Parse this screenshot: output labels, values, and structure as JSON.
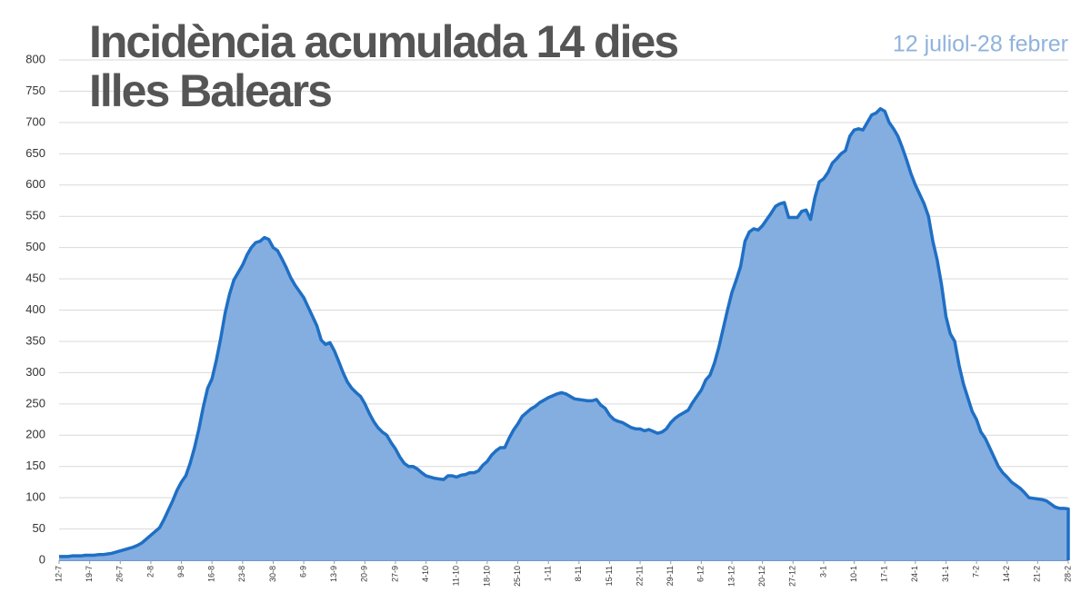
{
  "chart_data": {
    "type": "area",
    "title_lines": [
      "Incidència acumulada 14 dies",
      "Illes Balears"
    ],
    "subtitle": "12 juliol-28 febrer",
    "color": "#84aee0",
    "line_color": "#1f6fc4",
    "grid": true,
    "ylim": [
      0,
      800
    ],
    "yticks": [
      0,
      50,
      100,
      150,
      200,
      250,
      300,
      350,
      400,
      450,
      500,
      550,
      600,
      650,
      700,
      750,
      800
    ],
    "categories": [
      "12-7",
      null,
      null,
      null,
      null,
      null,
      null,
      "19-7",
      null,
      null,
      null,
      null,
      null,
      null,
      "26-7",
      null,
      null,
      null,
      null,
      null,
      null,
      "2-8",
      null,
      null,
      null,
      null,
      null,
      null,
      "9-8",
      null,
      null,
      null,
      null,
      null,
      null,
      "16-8",
      null,
      null,
      null,
      null,
      null,
      null,
      "23-8",
      null,
      null,
      null,
      null,
      null,
      null,
      "30-8",
      null,
      null,
      null,
      null,
      null,
      null,
      "6-9",
      null,
      null,
      null,
      null,
      null,
      null,
      "13-9",
      null,
      null,
      null,
      null,
      null,
      null,
      "20-9",
      null,
      null,
      null,
      null,
      null,
      null,
      "27-9",
      null,
      null,
      null,
      null,
      null,
      null,
      "4-10",
      null,
      null,
      null,
      null,
      null,
      null,
      "11-10",
      null,
      null,
      null,
      null,
      null,
      null,
      "18-10",
      null,
      null,
      null,
      null,
      null,
      null,
      "25-10",
      null,
      null,
      null,
      null,
      null,
      null,
      "1-11",
      null,
      null,
      null,
      null,
      null,
      null,
      "8-11",
      null,
      null,
      null,
      null,
      null,
      null,
      "15-11",
      null,
      null,
      null,
      null,
      null,
      null,
      "22-11",
      null,
      null,
      null,
      null,
      null,
      null,
      "29-11",
      null,
      null,
      null,
      null,
      null,
      null,
      "6-12",
      null,
      null,
      null,
      null,
      null,
      null,
      "13-12",
      null,
      null,
      null,
      null,
      null,
      null,
      "20-12",
      null,
      null,
      null,
      null,
      null,
      null,
      "27-12",
      null,
      null,
      null,
      null,
      null,
      null,
      "3-1",
      null,
      null,
      null,
      null,
      null,
      null,
      "10-1",
      null,
      null,
      null,
      null,
      null,
      null,
      "17-1",
      null,
      null,
      null,
      null,
      null,
      null,
      "24-1",
      null,
      null,
      null,
      null,
      null,
      null,
      "31-1",
      null,
      null,
      null,
      null,
      null,
      null,
      "7-2",
      null,
      null,
      null,
      null,
      null,
      null,
      "14-2",
      null,
      null,
      null,
      null,
      null,
      null,
      "21-2",
      null,
      null,
      null,
      null,
      null,
      null,
      "28-2"
    ],
    "values": [
      6,
      6,
      6,
      7,
      7,
      7,
      8,
      8,
      8,
      9,
      9,
      10,
      11,
      13,
      15,
      17,
      19,
      21,
      24,
      28,
      34,
      40,
      46,
      52,
      65,
      80,
      95,
      112,
      125,
      135,
      155,
      180,
      210,
      245,
      275,
      290,
      320,
      355,
      395,
      425,
      448,
      460,
      472,
      488,
      500,
      508,
      510,
      516,
      513,
      500,
      495,
      482,
      468,
      452,
      440,
      430,
      420,
      405,
      390,
      375,
      352,
      345,
      348,
      335,
      318,
      300,
      285,
      275,
      268,
      262,
      250,
      235,
      222,
      212,
      205,
      200,
      188,
      178,
      165,
      155,
      150,
      150,
      146,
      140,
      135,
      133,
      131,
      130,
      129,
      135,
      135,
      133,
      136,
      137,
      140,
      140,
      143,
      152,
      158,
      168,
      175,
      180,
      180,
      195,
      208,
      218,
      230,
      236,
      242,
      246,
      252,
      256,
      260,
      263,
      266,
      268,
      266,
      262,
      258,
      257,
      256,
      255,
      255,
      257,
      248,
      243,
      232,
      225,
      222,
      220,
      216,
      212,
      210,
      210,
      207,
      209,
      206,
      203,
      205,
      210,
      220,
      227,
      232,
      236,
      240,
      252,
      262,
      272,
      288,
      296,
      315,
      340,
      370,
      400,
      428,
      448,
      470,
      510,
      525,
      530,
      528,
      535,
      545,
      555,
      566,
      570,
      572,
      548,
      548,
      548,
      558,
      560,
      545,
      580,
      605,
      610,
      620,
      635,
      642,
      650,
      655,
      678,
      688,
      690,
      688,
      700,
      712,
      715,
      722,
      718,
      700,
      690,
      678,
      660,
      640,
      618,
      600,
      585,
      570,
      550,
      510,
      480,
      440,
      390,
      362,
      350,
      312,
      282,
      260,
      238,
      225,
      205,
      195,
      180,
      165,
      150,
      140,
      133,
      125,
      120,
      115,
      108,
      100,
      99,
      98,
      97,
      95,
      90,
      85,
      83,
      83,
      82
    ]
  }
}
